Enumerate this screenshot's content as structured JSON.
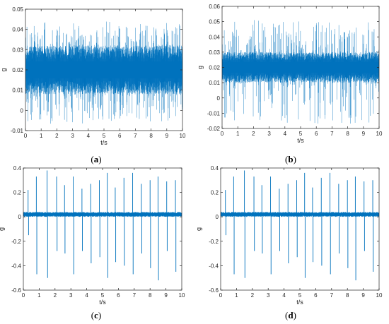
{
  "figure": {
    "captions": [
      "(a)",
      "(b)",
      "(c)",
      "(d)"
    ],
    "caption_letters": [
      "a",
      "b",
      "c",
      "d"
    ]
  },
  "colors": {
    "signal": "#0072BD",
    "axis": "#262626",
    "background": "#ffffff"
  },
  "chart_data": [
    {
      "panel": "(a)",
      "type": "line",
      "title": "",
      "xlabel": "t/s",
      "ylabel": "g",
      "xlim": [
        0,
        10
      ],
      "ylim": [
        -0.01,
        0.05
      ],
      "xticks": [
        0,
        1,
        2,
        3,
        4,
        5,
        6,
        7,
        8,
        9,
        10
      ],
      "yticks": [
        -0.01,
        0,
        0.01,
        0.02,
        0.03,
        0.04,
        0.05
      ],
      "ytick_labels": [
        "-0.01",
        "0",
        "0.01",
        "0.02",
        "0.03",
        "0.04",
        "0.05"
      ],
      "grid": false,
      "signal": {
        "description": "dense noisy vibration signal",
        "mean": 0.02,
        "core_min": 0.008,
        "core_max": 0.032,
        "envelope_min": -0.007,
        "envelope_max": 0.044
      }
    },
    {
      "panel": "(b)",
      "type": "line",
      "title": "",
      "xlabel": "t/s",
      "ylabel": "g",
      "xlim": [
        0,
        10
      ],
      "ylim": [
        -0.02,
        0.06
      ],
      "xticks": [
        0,
        1,
        2,
        3,
        4,
        5,
        6,
        7,
        8,
        9,
        10
      ],
      "yticks": [
        -0.02,
        -0.01,
        0,
        0.01,
        0.02,
        0.03,
        0.04,
        0.05,
        0.06
      ],
      "ytick_labels": [
        "-0.02",
        "-0.01",
        "0",
        "0.01",
        "0.02",
        "0.03",
        "0.04",
        "0.05",
        "0.06"
      ],
      "grid": false,
      "signal": {
        "description": "dense noisy vibration signal with sparse spikes",
        "mean": 0.02,
        "core_min": 0.01,
        "core_max": 0.03,
        "envelope_min": -0.017,
        "envelope_max": 0.051
      }
    },
    {
      "panel": "(c)",
      "type": "line",
      "title": "",
      "xlabel": "t/s",
      "ylabel": "g",
      "xlim": [
        0,
        10
      ],
      "ylim": [
        -0.6,
        0.4
      ],
      "xticks": [
        0,
        1,
        2,
        3,
        4,
        5,
        6,
        7,
        8,
        9,
        10
      ],
      "yticks": [
        -0.6,
        -0.4,
        -0.2,
        0,
        0.2,
        0.4
      ],
      "ytick_labels": [
        "-0.6",
        "-0.4",
        "-0.2",
        "0",
        "0.2",
        "0.4"
      ],
      "grid": false,
      "signal": {
        "description": "low-level noise with periodic impulses",
        "mean": 0.02,
        "noise_min": 0.0,
        "noise_max": 0.04
      },
      "impulses": [
        {
          "t": 0.3,
          "peak": 0.22,
          "trough": -0.15
        },
        {
          "t": 0.82,
          "peak": 0.33,
          "trough": -0.47
        },
        {
          "t": 1.5,
          "peak": 0.38,
          "trough": -0.5
        },
        {
          "t": 2.1,
          "peak": 0.33,
          "trough": -0.28
        },
        {
          "t": 2.6,
          "peak": 0.26,
          "trough": -0.3
        },
        {
          "t": 3.15,
          "peak": 0.33,
          "trough": -0.47
        },
        {
          "t": 3.7,
          "peak": 0.23,
          "trough": -0.28
        },
        {
          "t": 4.25,
          "peak": 0.27,
          "trough": -0.38
        },
        {
          "t": 4.8,
          "peak": 0.3,
          "trough": -0.33
        },
        {
          "t": 5.3,
          "peak": 0.36,
          "trough": -0.5
        },
        {
          "t": 5.8,
          "peak": 0.24,
          "trough": -0.37
        },
        {
          "t": 6.35,
          "peak": 0.32,
          "trough": -0.4
        },
        {
          "t": 6.9,
          "peak": 0.36,
          "trough": -0.47
        },
        {
          "t": 7.45,
          "peak": 0.27,
          "trough": -0.3
        },
        {
          "t": 8.0,
          "peak": 0.3,
          "trough": -0.42
        },
        {
          "t": 8.5,
          "peak": 0.33,
          "trough": -0.52
        },
        {
          "t": 9.05,
          "peak": 0.29,
          "trough": -0.28
        },
        {
          "t": 9.6,
          "peak": 0.3,
          "trough": -0.45
        }
      ]
    },
    {
      "panel": "(d)",
      "type": "line",
      "title": "",
      "xlabel": "t/s",
      "ylabel": "g",
      "xlim": [
        0,
        10
      ],
      "ylim": [
        -0.6,
        0.4
      ],
      "xticks": [
        0,
        1,
        2,
        3,
        4,
        5,
        6,
        7,
        8,
        9,
        10
      ],
      "yticks": [
        -0.6,
        -0.4,
        -0.2,
        0,
        0.2,
        0.4
      ],
      "ytick_labels": [
        "-0.6",
        "-0.4",
        "-0.2",
        "0",
        "0.2",
        "0.4"
      ],
      "grid": false,
      "signal": {
        "description": "low-level noise with periodic impulses",
        "mean": 0.02,
        "noise_min": 0.0,
        "noise_max": 0.04
      },
      "impulses": [
        {
          "t": 0.3,
          "peak": 0.22,
          "trough": -0.15
        },
        {
          "t": 0.82,
          "peak": 0.33,
          "trough": -0.47
        },
        {
          "t": 1.5,
          "peak": 0.38,
          "trough": -0.5
        },
        {
          "t": 2.1,
          "peak": 0.33,
          "trough": -0.28
        },
        {
          "t": 2.6,
          "peak": 0.26,
          "trough": -0.3
        },
        {
          "t": 3.15,
          "peak": 0.33,
          "trough": -0.47
        },
        {
          "t": 3.7,
          "peak": 0.23,
          "trough": -0.28
        },
        {
          "t": 4.25,
          "peak": 0.27,
          "trough": -0.38
        },
        {
          "t": 4.8,
          "peak": 0.3,
          "trough": -0.33
        },
        {
          "t": 5.3,
          "peak": 0.36,
          "trough": -0.5
        },
        {
          "t": 5.8,
          "peak": 0.24,
          "trough": -0.37
        },
        {
          "t": 6.35,
          "peak": 0.32,
          "trough": -0.4
        },
        {
          "t": 6.9,
          "peak": 0.36,
          "trough": -0.47
        },
        {
          "t": 7.45,
          "peak": 0.27,
          "trough": -0.3
        },
        {
          "t": 8.0,
          "peak": 0.3,
          "trough": -0.42
        },
        {
          "t": 8.5,
          "peak": 0.33,
          "trough": -0.52
        },
        {
          "t": 9.05,
          "peak": 0.29,
          "trough": -0.28
        },
        {
          "t": 9.6,
          "peak": 0.3,
          "trough": -0.45
        }
      ]
    }
  ]
}
